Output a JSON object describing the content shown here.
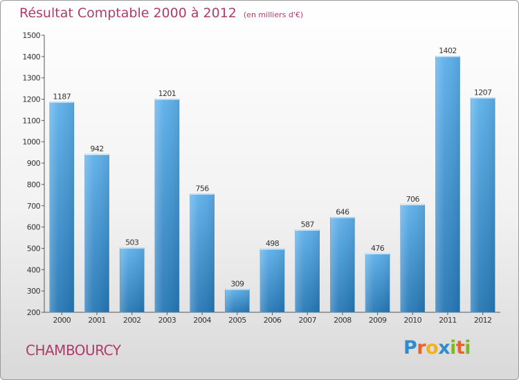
{
  "header": {
    "title": "Résultat Comptable 2000 à 2012",
    "unit": "(en milliers d'€)"
  },
  "commune": "CHAMBOURCY",
  "logo": {
    "letters": [
      "P",
      "r",
      "o",
      "x",
      "i",
      "t",
      "i"
    ],
    "colors": [
      "#2e8bcf",
      "#e8632b",
      "#f3b21b",
      "#2e8bcf",
      "#7ab828",
      "#e8632b",
      "#7ab828"
    ]
  },
  "colors": {
    "bar_top": "#5eb0ea",
    "bar_bottom": "#2677b5",
    "title": "#b03a68"
  },
  "chart_data": {
    "type": "bar",
    "title": "Résultat Comptable 2000 à 2012",
    "subtitle": "(en milliers d'€)",
    "xlabel": "",
    "ylabel": "",
    "categories": [
      "2000",
      "2001",
      "2002",
      "2003",
      "2004",
      "2005",
      "2006",
      "2007",
      "2008",
      "2009",
      "2010",
      "2011",
      "2012"
    ],
    "values": [
      1187,
      942,
      503,
      1201,
      756,
      309,
      498,
      587,
      646,
      476,
      706,
      1402,
      1207
    ],
    "ylim": [
      200,
      1500
    ],
    "yticks": [
      200,
      300,
      400,
      500,
      600,
      700,
      800,
      900,
      1000,
      1100,
      1200,
      1300,
      1400,
      1500
    ],
    "grid": false
  }
}
